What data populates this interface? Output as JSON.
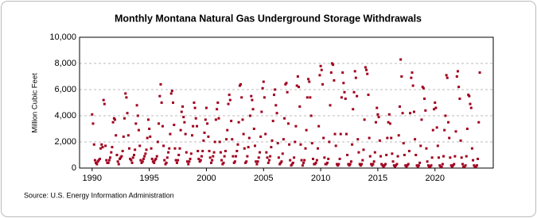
{
  "chart_data": {
    "type": "scatter",
    "title": "Monthly Montana Natural  Gas Underground Storage Withdrawals",
    "y_label": "Million Cubic Feet",
    "source": "Source: U.S. Energy Information Administration",
    "color": "#a0001e",
    "grid": true,
    "xlim": [
      1988.9,
      2025.1
    ],
    "xticks": [
      1990,
      1995,
      2000,
      2005,
      2010,
      2015,
      2020
    ],
    "ylim": [
      0,
      10000
    ],
    "yticks": [
      0,
      {
        "value": 2000,
        "label": "2,000"
      },
      {
        "value": 4000,
        "label": "4,000"
      },
      {
        "value": 6000,
        "label": "6,000"
      },
      {
        "value": 8000,
        "label": "8,000"
      },
      {
        "value": 10000,
        "label": "10,000"
      }
    ],
    "x": [
      1990,
      1990.08,
      1990.17,
      1990.25,
      1990.33,
      1990.42,
      1990.5,
      1990.58,
      1990.67,
      1990.75,
      1990.83,
      1990.92,
      1991,
      1991.08,
      1991.17,
      1991.25,
      1991.33,
      1991.42,
      1991.5,
      1991.58,
      1991.67,
      1991.75,
      1991.83,
      1991.92,
      1992,
      1992.08,
      1992.17,
      1992.25,
      1992.33,
      1992.42,
      1992.5,
      1992.58,
      1992.67,
      1992.75,
      1992.83,
      1992.92,
      1993,
      1993.08,
      1993.17,
      1993.25,
      1993.33,
      1993.42,
      1993.5,
      1993.58,
      1993.67,
      1993.75,
      1993.83,
      1993.92,
      1994,
      1994.08,
      1994.17,
      1994.25,
      1994.33,
      1994.42,
      1994.5,
      1994.58,
      1994.67,
      1994.75,
      1994.83,
      1994.92,
      1995,
      1995.08,
      1995.17,
      1995.25,
      1995.33,
      1995.42,
      1995.5,
      1995.58,
      1995.67,
      1995.75,
      1995.83,
      1995.92,
      1996,
      1996.08,
      1996.17,
      1996.25,
      1996.33,
      1996.42,
      1996.5,
      1996.58,
      1996.67,
      1996.75,
      1996.83,
      1996.92,
      1997,
      1997.08,
      1997.17,
      1997.25,
      1997.33,
      1997.42,
      1997.5,
      1997.58,
      1997.67,
      1997.75,
      1997.83,
      1997.92,
      1998,
      1998.08,
      1998.17,
      1998.25,
      1998.33,
      1998.42,
      1998.5,
      1998.58,
      1998.67,
      1998.75,
      1998.83,
      1998.92,
      1999,
      1999.08,
      1999.17,
      1999.25,
      1999.33,
      1999.42,
      1999.5,
      1999.58,
      1999.67,
      1999.75,
      1999.83,
      1999.92,
      2000,
      2000.08,
      2000.17,
      2000.25,
      2000.33,
      2000.42,
      2000.5,
      2000.58,
      2000.67,
      2000.75,
      2000.83,
      2000.92,
      2001,
      2001.08,
      2001.17,
      2001.25,
      2001.33,
      2001.42,
      2001.5,
      2001.58,
      2001.67,
      2001.75,
      2001.83,
      2001.92,
      2002,
      2002.08,
      2002.17,
      2002.25,
      2002.33,
      2002.42,
      2002.5,
      2002.58,
      2002.67,
      2002.75,
      2002.83,
      2002.92,
      2003,
      2003.08,
      2003.17,
      2003.25,
      2003.33,
      2003.42,
      2003.5,
      2003.58,
      2003.67,
      2003.75,
      2003.83,
      2003.92,
      2004,
      2004.08,
      2004.17,
      2004.25,
      2004.33,
      2004.42,
      2004.5,
      2004.58,
      2004.67,
      2004.75,
      2004.83,
      2004.92,
      2005,
      2005.08,
      2005.17,
      2005.25,
      2005.33,
      2005.42,
      2005.5,
      2005.58,
      2005.67,
      2005.75,
      2005.83,
      2005.92,
      2006,
      2006.08,
      2006.17,
      2006.25,
      2006.33,
      2006.42,
      2006.5,
      2006.58,
      2006.67,
      2006.75,
      2006.83,
      2006.92,
      2007,
      2007.08,
      2007.17,
      2007.25,
      2007.33,
      2007.42,
      2007.5,
      2007.58,
      2007.67,
      2007.75,
      2007.83,
      2007.92,
      2008,
      2008.08,
      2008.17,
      2008.25,
      2008.33,
      2008.42,
      2008.5,
      2008.58,
      2008.67,
      2008.75,
      2008.83,
      2008.92,
      2009,
      2009.08,
      2009.17,
      2009.25,
      2009.33,
      2009.42,
      2009.5,
      2009.58,
      2009.67,
      2009.75,
      2009.83,
      2009.92,
      2010,
      2010.08,
      2010.17,
      2010.25,
      2010.33,
      2010.42,
      2010.5,
      2010.58,
      2010.67,
      2010.75,
      2010.83,
      2010.92,
      2011,
      2011.08,
      2011.17,
      2011.25,
      2011.33,
      2011.42,
      2011.5,
      2011.58,
      2011.67,
      2011.75,
      2011.83,
      2011.92,
      2012,
      2012.08,
      2012.17,
      2012.25,
      2012.33,
      2012.42,
      2012.5,
      2012.58,
      2012.67,
      2012.75,
      2012.83,
      2012.92,
      2013,
      2013.08,
      2013.17,
      2013.25,
      2013.33,
      2013.42,
      2013.5,
      2013.58,
      2013.67,
      2013.75,
      2013.83,
      2013.92,
      2014,
      2014.08,
      2014.17,
      2014.25,
      2014.33,
      2014.42,
      2014.5,
      2014.58,
      2014.67,
      2014.75,
      2014.83,
      2014.92,
      2015,
      2015.08,
      2015.17,
      2015.25,
      2015.33,
      2015.42,
      2015.5,
      2015.58,
      2015.67,
      2015.75,
      2015.83,
      2015.92,
      2016,
      2016.08,
      2016.17,
      2016.25,
      2016.33,
      2016.42,
      2016.5,
      2016.58,
      2016.67,
      2016.75,
      2016.83,
      2016.92,
      2017,
      2017.08,
      2017.17,
      2017.25,
      2017.33,
      2017.42,
      2017.5,
      2017.58,
      2017.67,
      2017.75,
      2017.83,
      2017.92,
      2018,
      2018.08,
      2018.17,
      2018.25,
      2018.33,
      2018.42,
      2018.5,
      2018.58,
      2018.67,
      2018.75,
      2018.83,
      2018.92,
      2019,
      2019.08,
      2019.17,
      2019.25,
      2019.33,
      2019.42,
      2019.5,
      2019.58,
      2019.67,
      2019.75,
      2019.83,
      2019.92,
      2020,
      2020.08,
      2020.17,
      2020.25,
      2020.33,
      2020.42,
      2020.5,
      2020.58,
      2020.67,
      2020.75,
      2020.83,
      2020.92,
      2021,
      2021.08,
      2021.17,
      2021.25,
      2021.33,
      2021.42,
      2021.5,
      2021.58,
      2021.67,
      2021.75,
      2021.83,
      2021.92,
      2022,
      2022.08,
      2022.17,
      2022.25,
      2022.33,
      2022.42,
      2022.5,
      2022.58,
      2022.67,
      2022.75,
      2022.83,
      2022.92,
      2023,
      2023.08,
      2023.17,
      2023.25,
      2023.33,
      2023.42,
      2023.5,
      2023.58,
      2023.67,
      2023.75,
      2023.83,
      2023.92
    ],
    "values": [
      4100,
      3400,
      1800,
      600,
      400,
      300,
      500,
      600,
      700,
      1500,
      1800,
      1600,
      5200,
      4900,
      1700,
      600,
      400,
      400,
      600,
      800,
      1200,
      1600,
      3500,
      3800,
      3700,
      2500,
      1000,
      500,
      300,
      700,
      800,
      900,
      1300,
      2400,
      3800,
      5700,
      5400,
      4200,
      2500,
      1500,
      700,
      600,
      400,
      800,
      1000,
      1400,
      3400,
      4800,
      4000,
      2900,
      1700,
      600,
      400,
      500,
      700,
      900,
      1100,
      1400,
      2300,
      3700,
      3000,
      2400,
      1500,
      700,
      500,
      400,
      600,
      700,
      900,
      2000,
      3400,
      5500,
      6400,
      5000,
      3200,
      1700,
      600,
      300,
      400,
      800,
      1200,
      1500,
      2600,
      5700,
      5900,
      5000,
      3300,
      1500,
      600,
      400,
      600,
      1000,
      1500,
      2900,
      4300,
      4700,
      3900,
      3500,
      2600,
      1200,
      500,
      300,
      500,
      700,
      1100,
      2500,
      3200,
      5000,
      4600,
      3800,
      3200,
      1300,
      700,
      500,
      600,
      900,
      1300,
      2100,
      2700,
      3700,
      4600,
      3400,
      2400,
      1300,
      800,
      400,
      600,
      900,
      1200,
      2000,
      3700,
      4500,
      5000,
      3800,
      2000,
      1200,
      600,
      300,
      400,
      900,
      1300,
      2200,
      2900,
      4900,
      5600,
      5200,
      3600,
      2200,
      900,
      400,
      500,
      900,
      1300,
      1800,
      3500,
      6300,
      6400,
      5400,
      3700,
      2600,
      1500,
      400,
      500,
      900,
      1600,
      2300,
      4000,
      5500,
      5200,
      4500,
      3000,
      1700,
      500,
      300,
      500,
      800,
      1200,
      2400,
      4300,
      6100,
      6600,
      5400,
      2600,
      1200,
      800,
      400,
      600,
      900,
      1600,
      2100,
      3600,
      5600,
      6000,
      4800,
      4200,
      1900,
      800,
      300,
      400,
      500,
      1100,
      2200,
      3800,
      6400,
      6500,
      5800,
      3400,
      1800,
      600,
      200,
      300,
      400,
      800,
      2000,
      3200,
      6300,
      7000,
      6200,
      4700,
      1800,
      600,
      200,
      400,
      600,
      1500,
      2900,
      5400,
      6800,
      6600,
      5400,
      4000,
      1900,
      700,
      300,
      300,
      400,
      600,
      1500,
      3200,
      7100,
      7800,
      7500,
      6400,
      2300,
      800,
      300,
      300,
      400,
      700,
      2000,
      4800,
      7300,
      8000,
      7900,
      6700,
      2600,
      1700,
      300,
      200,
      300,
      700,
      2600,
      5400,
      7300,
      6500,
      5800,
      5300,
      2600,
      1000,
      300,
      200,
      300,
      500,
      1800,
      4500,
      5800,
      7400,
      6900,
      5500,
      2200,
      1200,
      300,
      200,
      300,
      600,
      1400,
      3700,
      7700,
      7500,
      7200,
      5600,
      2300,
      900,
      300,
      200,
      300,
      500,
      1200,
      3500,
      4600,
      4100,
      3900,
      2100,
      900,
      300,
      200,
      100,
      200,
      300,
      1000,
      2300,
      3500,
      4100,
      3400,
      2300,
      1100,
      500,
      200,
      100,
      200,
      300,
      900,
      2500,
      4700,
      8300,
      7000,
      4200,
      1900,
      1000,
      200,
      100,
      200,
      300,
      1300,
      4200,
      6900,
      7300,
      6300,
      4300,
      2200,
      1000,
      200,
      100,
      200,
      400,
      1700,
      3700,
      6200,
      6100,
      5300,
      4400,
      1500,
      500,
      200,
      100,
      100,
      200,
      800,
      2900,
      4500,
      5000,
      4600,
      3100,
      1700,
      800,
      200,
      100,
      100,
      300,
      900,
      2900,
      4000,
      7100,
      6900,
      3500,
      2300,
      800,
      200,
      100,
      200,
      300,
      900,
      2800,
      7000,
      7400,
      6200,
      5300,
      2100,
      800,
      300,
      100,
      100,
      200,
      900,
      3000,
      5600,
      5500,
      4900,
      4600,
      1500,
      600,
      200,
      100,
      100,
      200,
      700,
      3500,
      7300
    ]
  }
}
